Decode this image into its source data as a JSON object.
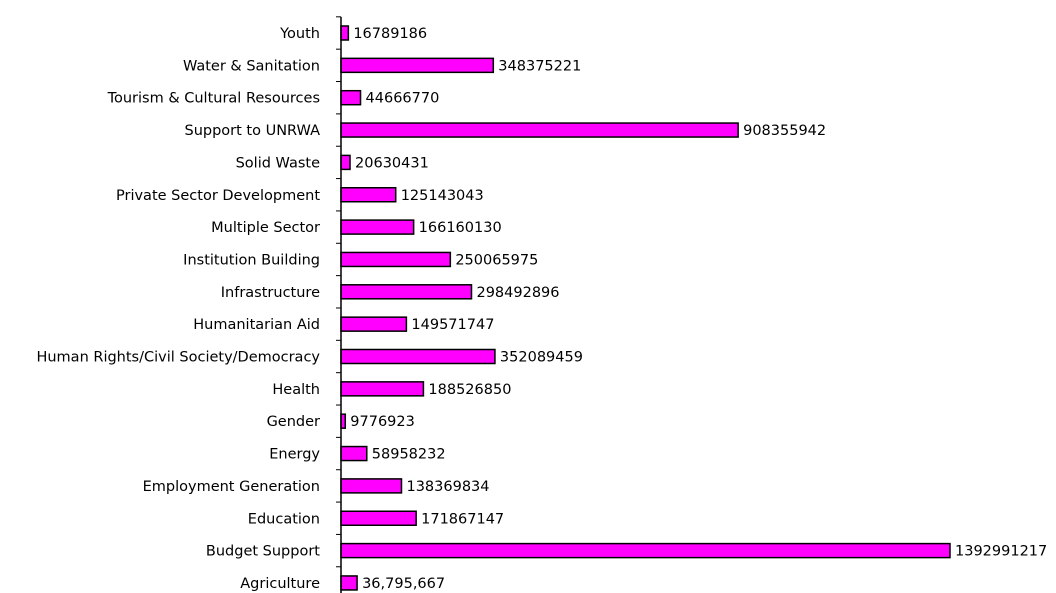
{
  "chart_data": {
    "type": "bar",
    "orientation": "horizontal",
    "title": "",
    "xlabel": "",
    "ylabel": "",
    "grid": false,
    "legend": "none",
    "bar_color": "#ff00ff",
    "bar_border_color": "#000000",
    "xlim": [
      0,
      1400000000
    ],
    "categories": [
      "Youth",
      "Water & Sanitation",
      "Tourism & Cultural Resources",
      "Support to UNRWA",
      "Solid Waste",
      "Private Sector Development",
      "Multiple Sector",
      "Institution Building",
      "Infrastructure",
      "Humanitarian Aid",
      "Human Rights/Civil Society/Democracy",
      "Health",
      "Gender",
      "Energy",
      "Employment Generation",
      "Education",
      "Budget Support",
      "Agriculture"
    ],
    "values": [
      16789186,
      348375221,
      44666770,
      908355942,
      20630431,
      125143043,
      166160130,
      250065975,
      298492896,
      149571747,
      352089459,
      188526850,
      9776923,
      58958232,
      138369834,
      171867147,
      1392991217,
      36795667
    ],
    "data_labels": [
      "16789186",
      "348375221",
      "44666770",
      "908355942",
      "20630431",
      "125143043",
      "166160130",
      "250065975",
      "298492896",
      "149571747",
      "352089459",
      "188526850",
      "9776923",
      "58958232",
      "138369834",
      "171867147",
      "1392991217",
      "36,795,667"
    ]
  }
}
